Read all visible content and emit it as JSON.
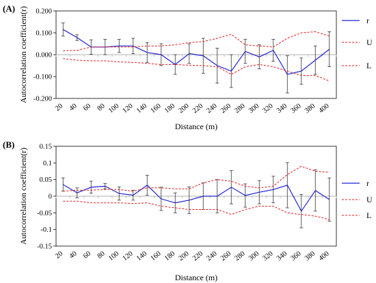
{
  "chart_data": [
    {
      "type": "line",
      "panel_label": "(A)",
      "xlabel": "Distance (m)",
      "ylabel": "Autocorrelation coefficient(r)",
      "x": [
        20,
        40,
        60,
        80,
        100,
        120,
        140,
        160,
        180,
        200,
        220,
        240,
        260,
        280,
        300,
        320,
        340,
        360,
        380,
        400
      ],
      "ylim": [
        -0.2,
        0.2
      ],
      "yticks": [
        0.2,
        0.1,
        0.0,
        -0.1,
        -0.2
      ],
      "ytick_labels": [
        "0.200",
        "0.100",
        "0.000",
        "-0.100",
        "-0.200"
      ],
      "series": [
        {
          "name": "r",
          "color": "#1f1fd6",
          "style": "solid",
          "values": [
            0.115,
            0.078,
            0.035,
            0.035,
            0.04,
            0.04,
            0.01,
            0.0,
            -0.045,
            0.005,
            -0.005,
            -0.05,
            -0.075,
            0.015,
            -0.01,
            0.02,
            -0.09,
            -0.075,
            -0.025,
            0.025
          ],
          "error": [
            0.03,
            0.013,
            0.033,
            0.035,
            0.03,
            0.035,
            0.045,
            0.05,
            0.045,
            0.045,
            0.08,
            0.08,
            0.075,
            0.055,
            0.055,
            0.05,
            0.085,
            0.06,
            0.065,
            0.08
          ]
        },
        {
          "name": "U",
          "color": "#e31a1c",
          "style": "dashed",
          "values": [
            0.018,
            0.02,
            0.035,
            0.035,
            0.035,
            0.035,
            0.04,
            0.04,
            0.045,
            0.055,
            0.06,
            0.075,
            0.093,
            0.045,
            0.04,
            0.035,
            0.075,
            0.1,
            0.105,
            0.085
          ]
        },
        {
          "name": "L",
          "color": "#e31a1c",
          "style": "dashed",
          "values": [
            -0.018,
            -0.025,
            -0.028,
            -0.028,
            -0.033,
            -0.035,
            -0.04,
            -0.045,
            -0.045,
            -0.048,
            -0.05,
            -0.055,
            -0.09,
            -0.055,
            -0.045,
            -0.055,
            -0.075,
            -0.095,
            -0.095,
            -0.12
          ]
        }
      ]
    },
    {
      "type": "line",
      "panel_label": "(B)",
      "xlabel": "Distance (m)",
      "ylabel": "Autocorrelation coefficient(r)",
      "x": [
        20,
        40,
        60,
        80,
        100,
        120,
        140,
        160,
        180,
        200,
        220,
        240,
        260,
        280,
        300,
        320,
        340,
        360,
        380,
        400
      ],
      "ylim": [
        -0.15,
        0.15
      ],
      "yticks": [
        0.15,
        0.1,
        0.05,
        0.0,
        -0.05,
        -0.1,
        -0.15
      ],
      "ytick_labels": [
        "0.15",
        "0.1",
        "0.05",
        "0",
        "-0.05",
        "-0.1",
        "-0.15"
      ],
      "series": [
        {
          "name": "r",
          "color": "#1f1fd6",
          "style": "solid",
          "values": [
            0.035,
            0.01,
            0.027,
            0.03,
            0.008,
            0.003,
            0.033,
            -0.008,
            -0.02,
            -0.012,
            0.0,
            0.0,
            0.027,
            0.002,
            0.012,
            0.02,
            0.033,
            -0.045,
            0.017,
            -0.01
          ],
          "error": [
            0.02,
            0.015,
            0.018,
            0.008,
            0.02,
            0.015,
            0.03,
            0.035,
            0.03,
            0.04,
            0.04,
            0.05,
            0.05,
            0.035,
            0.035,
            0.04,
            0.068,
            0.05,
            0.062,
            0.065
          ]
        },
        {
          "name": "U",
          "color": "#e31a1c",
          "style": "dashed",
          "values": [
            0.015,
            0.018,
            0.018,
            0.02,
            0.02,
            0.015,
            0.025,
            0.025,
            0.022,
            0.022,
            0.04,
            0.05,
            0.045,
            0.03,
            0.025,
            0.03,
            0.065,
            0.09,
            0.075,
            0.072
          ]
        },
        {
          "name": "L",
          "color": "#e31a1c",
          "style": "dashed",
          "values": [
            -0.015,
            -0.015,
            -0.02,
            -0.02,
            -0.02,
            -0.022,
            -0.02,
            -0.03,
            -0.035,
            -0.04,
            -0.04,
            -0.04,
            -0.055,
            -0.04,
            -0.03,
            -0.03,
            -0.05,
            -0.055,
            -0.06,
            -0.07
          ]
        }
      ]
    }
  ]
}
